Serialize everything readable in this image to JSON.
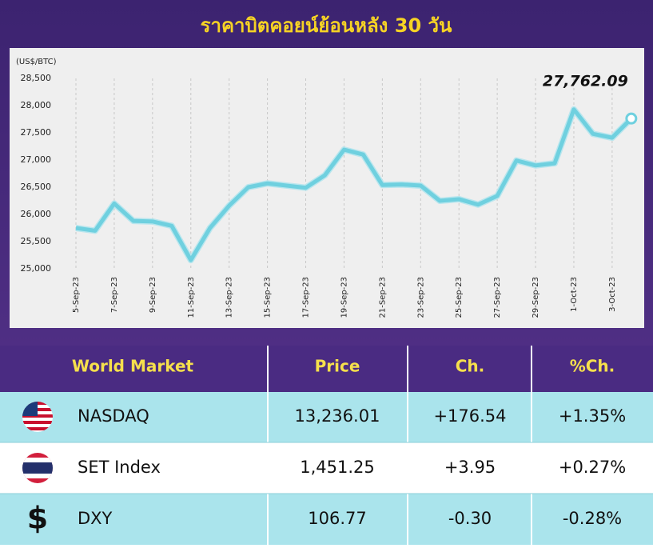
{
  "chart_data": {
    "type": "line",
    "title": "ราคาบิตคอยน์ย้อนหลัง 30 วัน",
    "ylabel": "(US$/BTC)",
    "categories": [
      "5-Sep-23",
      null,
      "7-Sep-23",
      null,
      "9-Sep-23",
      null,
      "11-Sep-23",
      null,
      "13-Sep-23",
      null,
      "15-Sep-23",
      null,
      "17-Sep-23",
      null,
      "19-Sep-23",
      null,
      "21-Sep-23",
      null,
      "23-Sep-23",
      null,
      "25-Sep-23",
      null,
      "27-Sep-23",
      null,
      "29-Sep-23",
      null,
      "1-Oct-23",
      null,
      "3-Oct-23",
      null
    ],
    "values": [
      25750,
      25700,
      26200,
      25880,
      25870,
      25790,
      25160,
      25750,
      26160,
      26500,
      26570,
      26530,
      26490,
      26720,
      27190,
      27100,
      26540,
      26550,
      26530,
      26250,
      26280,
      26180,
      26340,
      26990,
      26900,
      26940,
      27930,
      27480,
      27410,
      27762.09
    ],
    "value_labels": [
      null,
      null,
      null,
      null,
      null,
      null,
      null,
      null,
      null,
      null,
      null,
      null,
      null,
      null,
      null,
      null,
      null,
      null,
      null,
      null,
      null,
      null,
      null,
      null,
      null,
      null,
      null,
      null,
      null,
      "27,762.09"
    ],
    "color": "#6fd0df",
    "ylim": [
      25000,
      28500
    ],
    "yticks": [
      {
        "value": 25000,
        "label": "25,000"
      },
      {
        "value": 25500,
        "label": "25,500"
      },
      {
        "value": 26000,
        "label": "26,000"
      },
      {
        "value": 26500,
        "label": "26,500"
      },
      {
        "value": 27000,
        "label": "27,000"
      },
      {
        "value": 27500,
        "label": "27,500"
      },
      {
        "value": 28000,
        "label": "28,000"
      },
      {
        "value": 28500,
        "label": "28,500"
      }
    ],
    "grid": true
  },
  "table": {
    "header": [
      "World Market",
      "Price",
      "Ch.",
      "%Ch."
    ],
    "rows": [
      {
        "name": "NASDAQ",
        "price": "13,236.01",
        "change": "+176.54",
        "pct_change": "+1.35%"
      },
      {
        "name": "SET Index",
        "price": "1,451.25",
        "change": "+3.95",
        "pct_change": "+0.27%"
      },
      {
        "symbol": "$",
        "name": "DXY",
        "price": "106.77",
        "change": "-0.30",
        "pct_change": "-0.28%"
      }
    ]
  }
}
